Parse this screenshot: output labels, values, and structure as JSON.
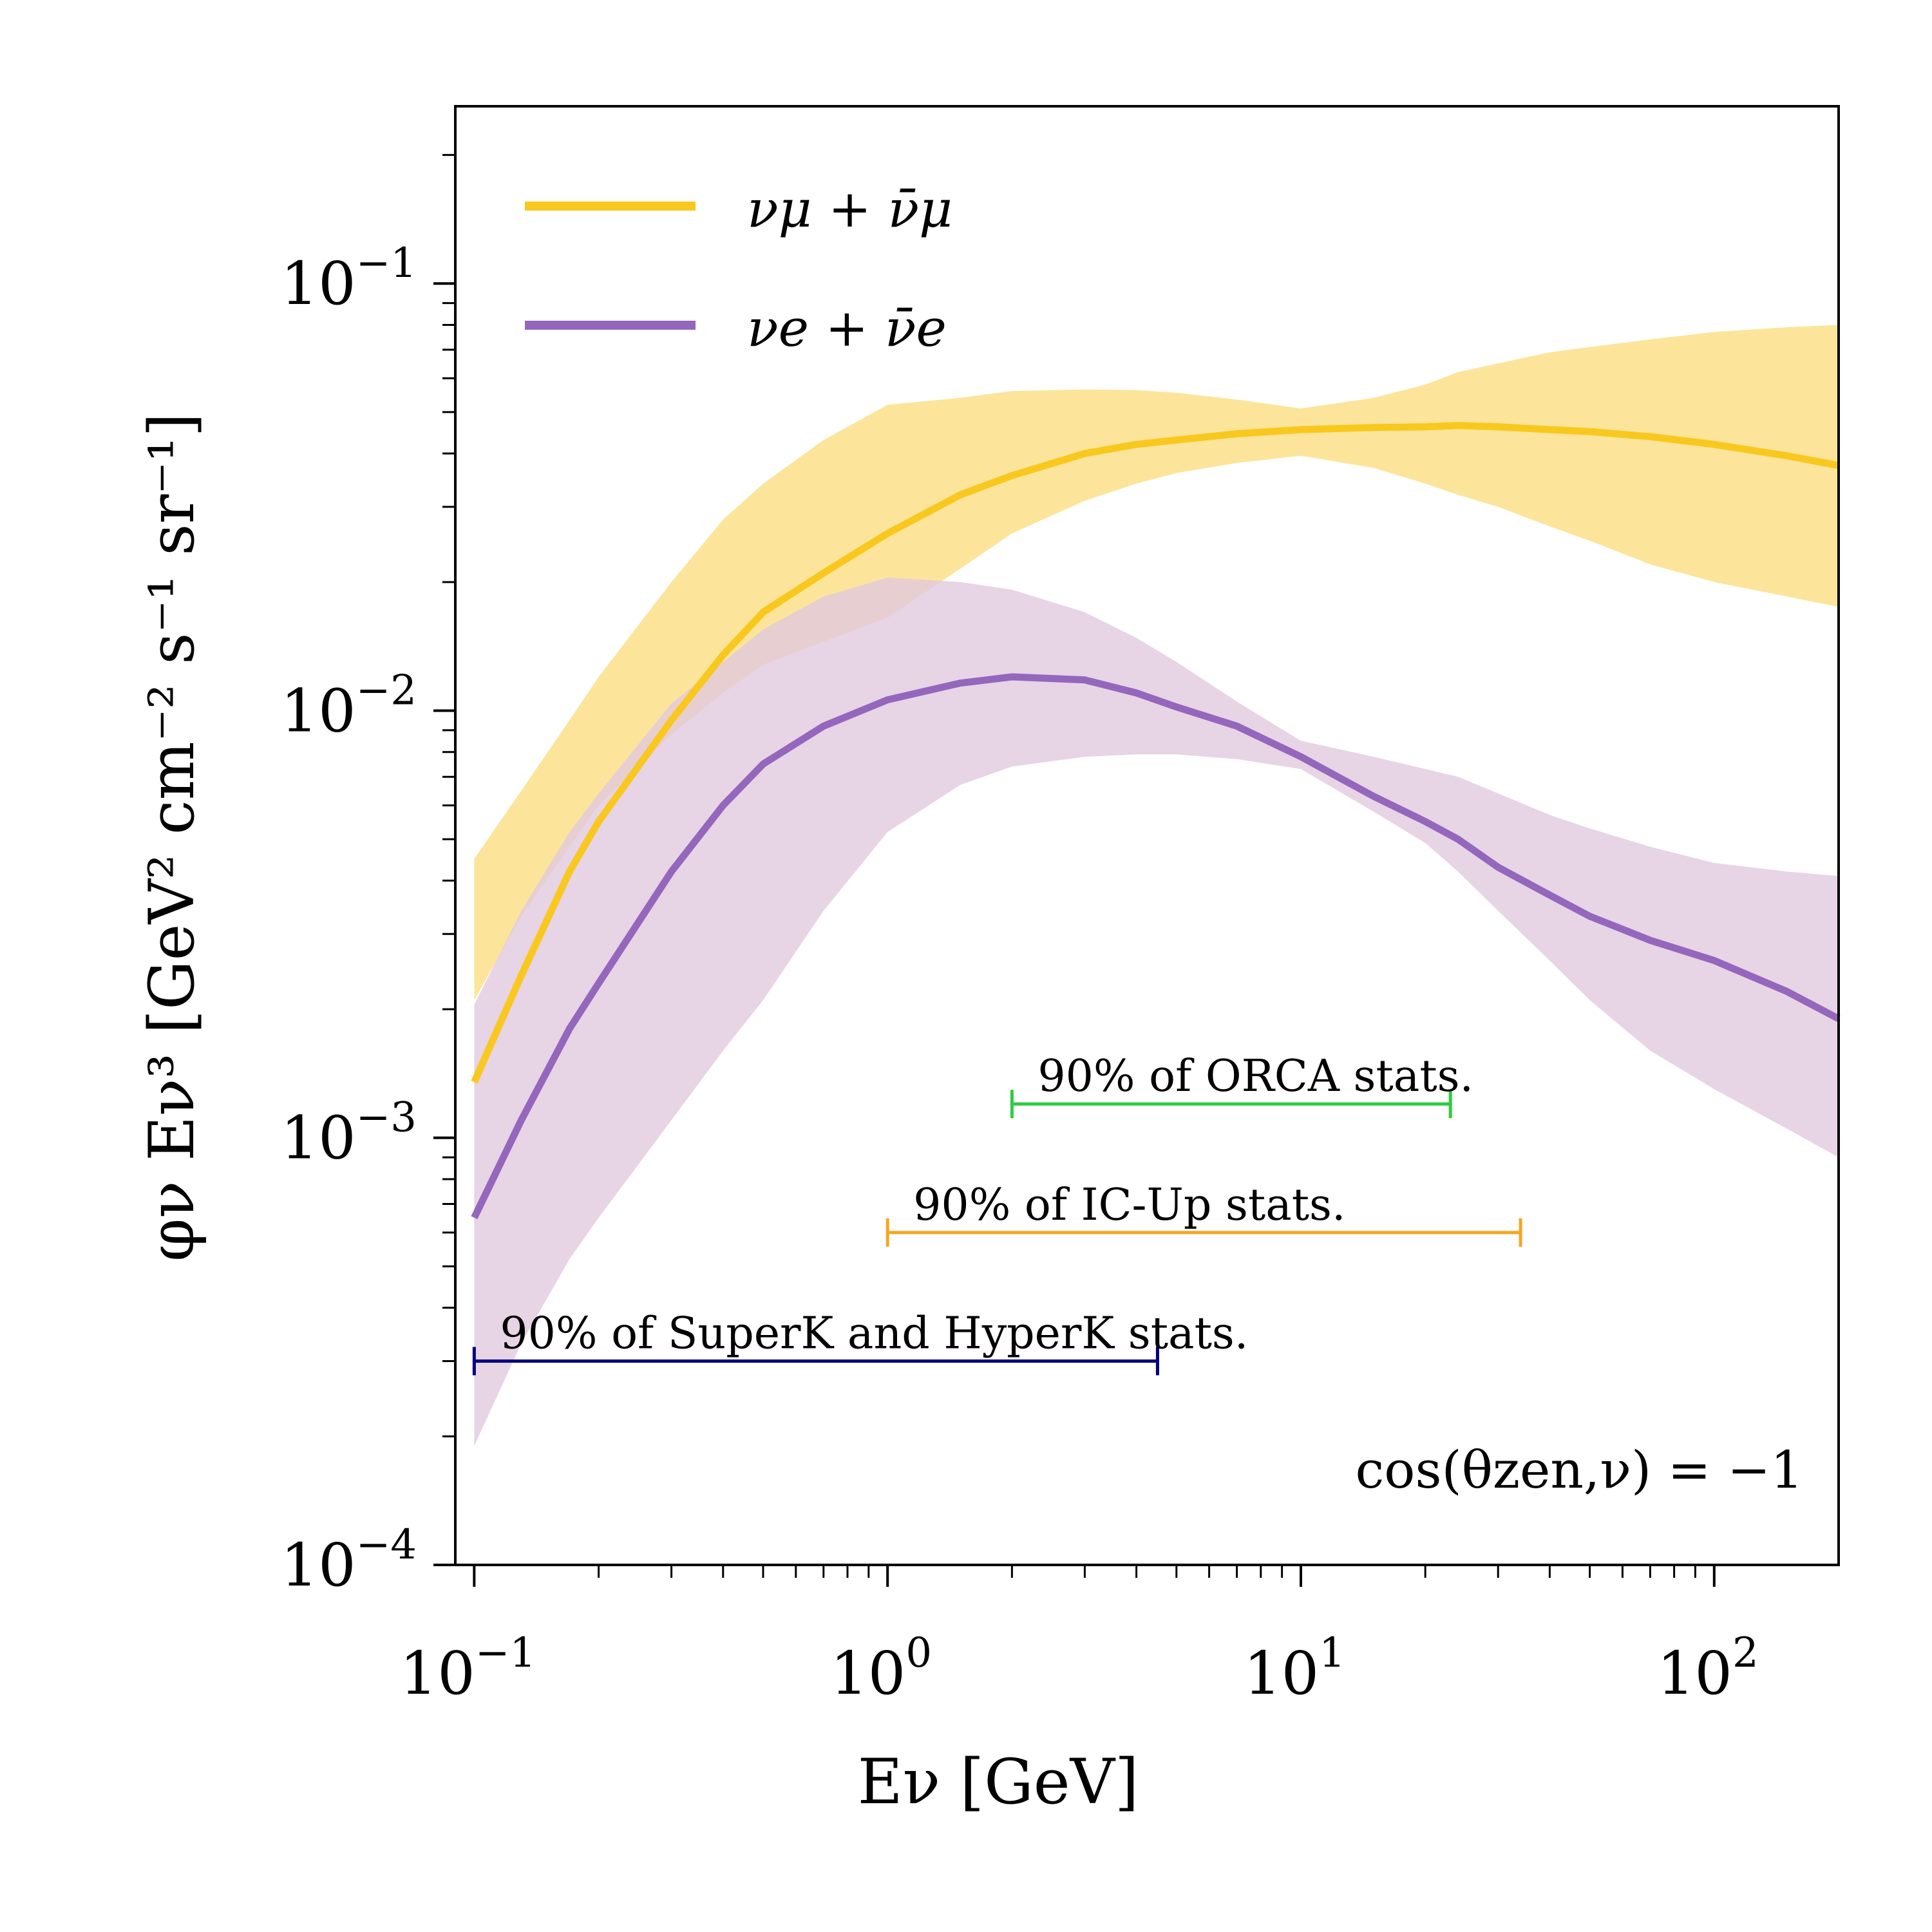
{
  "chart_data": {
    "type": "line",
    "title": "",
    "xlabel": "Eν [GeV]",
    "ylabel": "φν Eν³ [GeV² cm⁻² s⁻¹ sr⁻¹]",
    "xscale": "log",
    "yscale": "log",
    "xlim": [
      0.09,
      200
    ],
    "ylim": [
      0.0001,
      0.26
    ],
    "x_ticks": [
      {
        "value": 0.1,
        "base": "10",
        "exp": "−1"
      },
      {
        "value": 1,
        "base": "10",
        "exp": "0"
      },
      {
        "value": 10,
        "base": "10",
        "exp": "1"
      },
      {
        "value": 100,
        "base": "10",
        "exp": "2"
      }
    ],
    "y_ticks": [
      {
        "value": 0.0001,
        "base": "10",
        "exp": "−4"
      },
      {
        "value": 0.001,
        "base": "10",
        "exp": "−3"
      },
      {
        "value": 0.01,
        "base": "10",
        "exp": "−2"
      },
      {
        "value": 0.1,
        "base": "10",
        "exp": "−1"
      }
    ],
    "legend_position": "top-left",
    "series": [
      {
        "name": "νμ + ν̄μ",
        "color": "#f9c81e",
        "band_color": "#fbe08a",
        "x": [
          0.1,
          0.13,
          0.17,
          0.2,
          0.3,
          0.4,
          0.5,
          0.7,
          1.0,
          1.5,
          2.0,
          3.0,
          4.0,
          5.0,
          7.0,
          10,
          15,
          20,
          24,
          30,
          40,
          50,
          70,
          100,
          150,
          200
        ],
        "y": [
          0.00135,
          0.0024,
          0.0042,
          0.0055,
          0.0095,
          0.0135,
          0.017,
          0.021,
          0.026,
          0.032,
          0.0355,
          0.04,
          0.042,
          0.043,
          0.0445,
          0.0455,
          0.046,
          0.0462,
          0.0465,
          0.0462,
          0.0455,
          0.045,
          0.0438,
          0.042,
          0.0395,
          0.0375
        ],
        "band_lower": [
          0.0021,
          0.0033,
          0.0048,
          0.006,
          0.0088,
          0.011,
          0.0128,
          0.0145,
          0.0165,
          0.0215,
          0.026,
          0.031,
          0.034,
          0.036,
          0.038,
          0.0395,
          0.037,
          0.034,
          0.032,
          0.03,
          0.027,
          0.025,
          0.022,
          0.02,
          0.0185,
          0.0175
        ],
        "band_upper": [
          0.0045,
          0.0065,
          0.0095,
          0.012,
          0.02,
          0.028,
          0.034,
          0.043,
          0.052,
          0.054,
          0.056,
          0.0565,
          0.0563,
          0.0555,
          0.0535,
          0.051,
          0.054,
          0.058,
          0.062,
          0.065,
          0.069,
          0.071,
          0.074,
          0.077,
          0.079,
          0.08
        ]
      },
      {
        "name": "νe + ν̄e",
        "color": "#9467bd",
        "band_color": "#e1c9de",
        "x": [
          0.1,
          0.13,
          0.17,
          0.2,
          0.3,
          0.4,
          0.5,
          0.7,
          1.0,
          1.5,
          2.0,
          3.0,
          4.0,
          5.0,
          7.0,
          10,
          15,
          20,
          24,
          30,
          40,
          50,
          70,
          100,
          150,
          200
        ],
        "y": [
          0.00065,
          0.0011,
          0.0018,
          0.0023,
          0.0042,
          0.006,
          0.0075,
          0.0092,
          0.0106,
          0.0116,
          0.012,
          0.0118,
          0.011,
          0.0102,
          0.0092,
          0.0078,
          0.0063,
          0.0055,
          0.005,
          0.0043,
          0.0037,
          0.0033,
          0.0029,
          0.0026,
          0.0022,
          0.0019
        ],
        "band_lower": [
          0.00019,
          0.00033,
          0.00052,
          0.00065,
          0.0011,
          0.0016,
          0.0021,
          0.0034,
          0.0052,
          0.0067,
          0.0074,
          0.0078,
          0.0079,
          0.0079,
          0.0077,
          0.0073,
          0.0058,
          0.0049,
          0.0042,
          0.0034,
          0.0026,
          0.0021,
          0.0016,
          0.0013,
          0.00105,
          0.0009
        ],
        "band_upper": [
          0.00205,
          0.0034,
          0.0052,
          0.0064,
          0.0104,
          0.013,
          0.0155,
          0.0185,
          0.0205,
          0.02,
          0.0192,
          0.017,
          0.0148,
          0.013,
          0.0105,
          0.0085,
          0.0078,
          0.0073,
          0.007,
          0.0064,
          0.0057,
          0.0053,
          0.0048,
          0.0044,
          0.0042,
          0.0041
        ]
      }
    ],
    "ranges": [
      {
        "label": "90% of ORCA stats.",
        "x_min": 2.0,
        "x_max": 23,
        "y": 0.0012,
        "color": "#2ecc40"
      },
      {
        "label": "90% of IC-Up stats.",
        "x_min": 1.0,
        "x_max": 34,
        "y": 0.0006,
        "color": "#f5a623"
      },
      {
        "label": "90% of SuperK and HyperK stats.",
        "x_min": 0.1,
        "x_max": 4.5,
        "y": 0.0003,
        "color": "#00007f"
      }
    ],
    "annotation": "cos(θzen,ν) = −1"
  }
}
